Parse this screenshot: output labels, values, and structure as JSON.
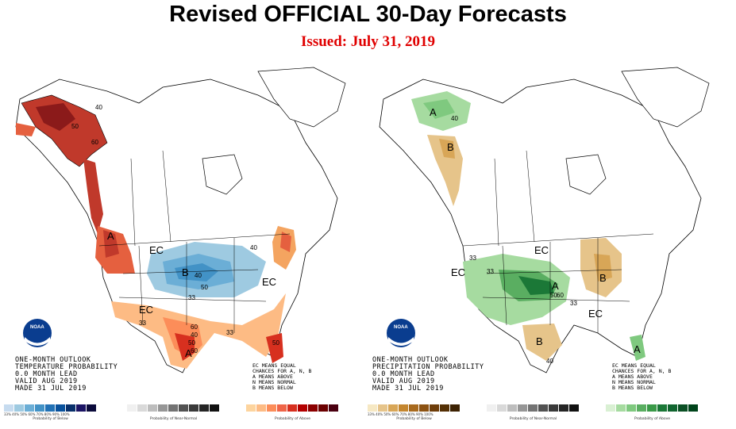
{
  "header": {
    "title": "Revised OFFICIAL 30-Day Forecasts",
    "issued": "Issued: July 31, 2019",
    "issued_color": "#e00000"
  },
  "temperature": {
    "outlook_lines": [
      "ONE-MONTH OUTLOOK",
      "TEMPERATURE PROBABILITY",
      "0.0 MONTH LEAD",
      "VALID AUG 2019",
      "MADE 31 JUL 2019"
    ],
    "legend_lines": [
      "EC MEANS EQUAL",
      "CHANCES FOR A, N, B",
      "A MEANS ABOVE",
      "N MEANS NORMAL",
      "B MEANS BELOW"
    ],
    "labels": [
      "A",
      "EC",
      "B",
      "EC",
      "EC",
      "A"
    ],
    "contour_values": [
      "40",
      "50",
      "60",
      "33",
      "40",
      "50",
      "60",
      "40",
      "50",
      "60",
      "33",
      "50",
      "40",
      "33"
    ],
    "colorbars": [
      {
        "caption": "Probability of Below",
        "colors": [
          "#c6dbef",
          "#9ecae1",
          "#6baed6",
          "#4292c6",
          "#2171b5",
          "#08519c",
          "#08306b",
          "#1b1464",
          "#0b0b3b"
        ]
      },
      {
        "caption": "Probability of Near-Normal",
        "colors": [
          "#f0f0f0",
          "#d9d9d9",
          "#bdbdbd",
          "#969696",
          "#737373",
          "#525252",
          "#3a3a3a",
          "#252525",
          "#111111"
        ]
      },
      {
        "caption": "Probability of Above",
        "colors": [
          "#fdd49e",
          "#fdbb84",
          "#fc8d59",
          "#ef6548",
          "#d7301f",
          "#b30000",
          "#8b0000",
          "#6b0000",
          "#4a0010"
        ]
      }
    ],
    "tick_text": "33%  40%  50%  60%  70%  80%  90%  100%"
  },
  "precipitation": {
    "outlook_lines": [
      "ONE-MONTH OUTLOOK",
      "PRECIPITATION PROBABILITY",
      "0.0 MONTH LEAD",
      "VALID AUG 2019",
      "MADE 31 JUL 2019"
    ],
    "legend_lines": [
      "EC MEANS EQUAL",
      "CHANCES FOR A, N, B",
      "A MEANS ABOVE",
      "N MEANS NORMAL",
      "B MEANS BELOW"
    ],
    "labels": [
      "A",
      "B",
      "EC",
      "EC",
      "A",
      "B",
      "B",
      "EC",
      "A"
    ],
    "contour_values": [
      "40",
      "33",
      "50",
      "60",
      "33",
      "40",
      "33"
    ],
    "colorbars": [
      {
        "caption": "Probability of Below",
        "colors": [
          "#f6e8c3",
          "#e6c48a",
          "#d8a657",
          "#c4862f",
          "#a86a1e",
          "#8c5212",
          "#6e3d0a",
          "#543005",
          "#3d2203"
        ]
      },
      {
        "caption": "Probability of Near-Normal",
        "colors": [
          "#f0f0f0",
          "#d9d9d9",
          "#bdbdbd",
          "#969696",
          "#737373",
          "#525252",
          "#3a3a3a",
          "#252525",
          "#111111"
        ]
      },
      {
        "caption": "Probability of Above",
        "colors": [
          "#d9f0d3",
          "#a6dba0",
          "#7fc97f",
          "#5aae61",
          "#3a9a48",
          "#1b7837",
          "#116530",
          "#0b5025",
          "#00441b"
        ]
      }
    ],
    "tick_text": "33%  40%  50%  60%  70%  80%  90%  100%"
  },
  "logo": {
    "text": "NOAA"
  }
}
